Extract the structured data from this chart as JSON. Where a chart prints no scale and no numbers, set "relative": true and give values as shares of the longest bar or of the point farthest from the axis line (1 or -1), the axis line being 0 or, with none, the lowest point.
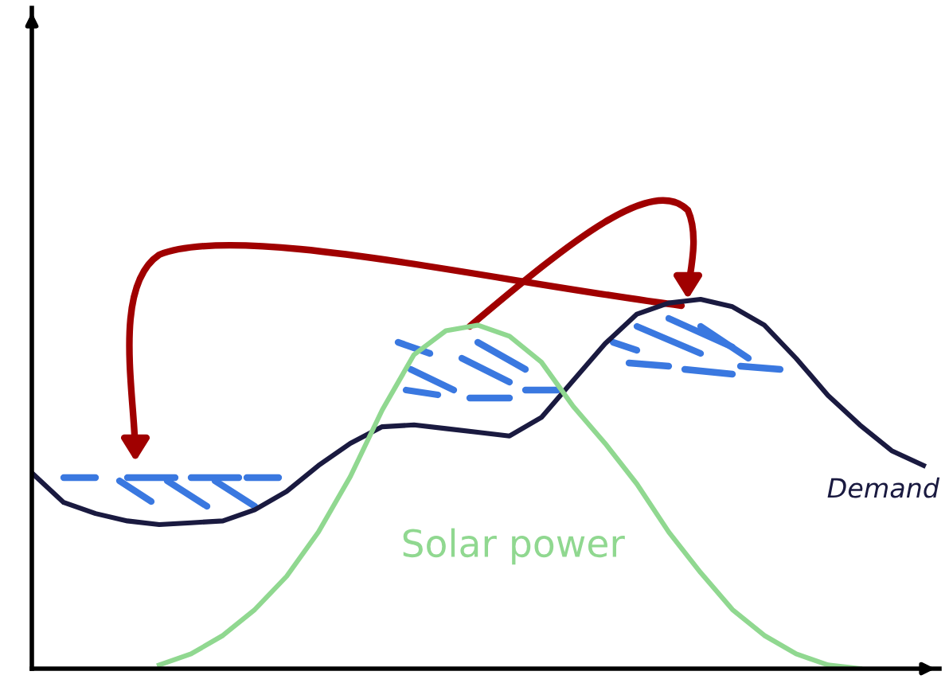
{
  "chart_data": {
    "type": "line",
    "relative": true,
    "marker": "none",
    "line_style": "solid",
    "categories": [
      null,
      null,
      null,
      null,
      null,
      null,
      null,
      null,
      null,
      null,
      null,
      null,
      null,
      null,
      null,
      null,
      null,
      null,
      null,
      null,
      null,
      null,
      null,
      null,
      null,
      null,
      null,
      null,
      null
    ],
    "series": [
      {
        "name": "Demand",
        "color": "#1a1a40",
        "values": [
          0.53,
          0.45,
          0.42,
          0.4,
          0.39,
          0.395,
          0.4,
          0.43,
          0.48,
          0.55,
          0.61,
          0.655,
          0.66,
          0.65,
          0.64,
          0.63,
          0.68,
          0.78,
          0.88,
          0.96,
          0.99,
          1.0,
          0.98,
          0.93,
          0.84,
          0.74,
          0.66,
          0.59,
          0.55
        ]
      },
      {
        "name": "Solar power",
        "color": "#90d890",
        "values": [
          null,
          null,
          null,
          null,
          0.01,
          0.04,
          0.09,
          0.16,
          0.25,
          0.37,
          0.52,
          0.7,
          0.85,
          0.915,
          0.93,
          0.9,
          0.83,
          0.71,
          0.61,
          0.5,
          0.37,
          0.26,
          0.16,
          0.09,
          0.04,
          0.01,
          0,
          null,
          null
        ]
      }
    ]
  }
}
